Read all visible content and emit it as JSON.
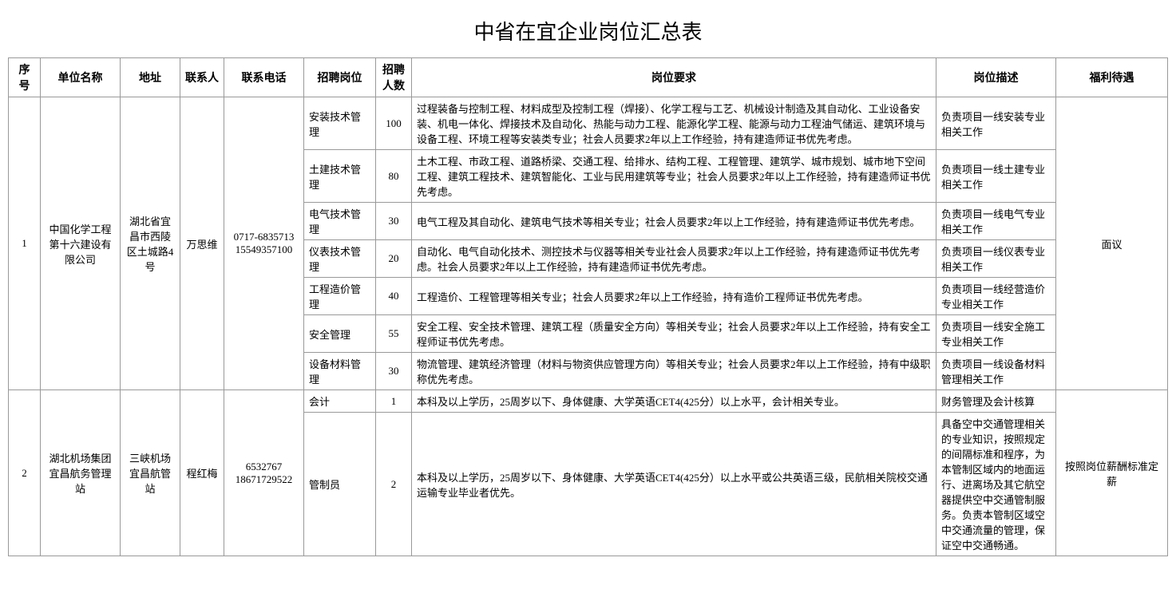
{
  "title": "中省在宜企业岗位汇总表",
  "columns": [
    "序号",
    "单位名称",
    "地址",
    "联系人",
    "联系电话",
    "招聘岗位",
    "招聘人数",
    "岗位要求",
    "岗位描述",
    "福利待遇"
  ],
  "rows": [
    {
      "seq": "1",
      "company": "中国化学工程第十六建设有限公司",
      "address": "湖北省宜昌市西陵区土城路4号",
      "contact": "万思维",
      "phone": "0717-6835713 15549357100",
      "benefit": "面议",
      "positions": [
        {
          "name": "安装技术管理",
          "count": "100",
          "req": "过程装备与控制工程、材料成型及控制工程（焊接）、化学工程与工艺、机械设计制造及其自动化、工业设备安装、机电一体化、焊接技术及自动化、热能与动力工程、能源化学工程、能源与动力工程油气储运、建筑环境与设备工程、环境工程等安装类专业；社会人员要求2年以上工作经验，持有建造师证书优先考虑。",
          "desc": "负责项目一线安装专业相关工作"
        },
        {
          "name": "土建技术管理",
          "count": "80",
          "req": "土木工程、市政工程、道路桥梁、交通工程、给排水、结构工程、工程管理、建筑学、城市规划、城市地下空间工程、建筑工程技术、建筑智能化、工业与民用建筑等专业；社会人员要求2年以上工作经验，持有建造师证书优先考虑。",
          "desc": "负责项目一线土建专业相关工作"
        },
        {
          "name": "电气技术管理",
          "count": "30",
          "req": "电气工程及其自动化、建筑电气技术等相关专业；社会人员要求2年以上工作经验，持有建造师证书优先考虑。",
          "desc": "负责项目一线电气专业相关工作"
        },
        {
          "name": "仪表技术管理",
          "count": "20",
          "req": "自动化、电气自动化技术、测控技术与仪器等相关专业社会人员要求2年以上工作经验，持有建造师证书优先考虑。社会人员要求2年以上工作经验，持有建造师证书优先考虑。",
          "desc": "负责项目一线仪表专业相关工作"
        },
        {
          "name": "工程造价管理",
          "count": "40",
          "req": "工程造价、工程管理等相关专业；社会人员要求2年以上工作经验，持有造价工程师证书优先考虑。",
          "desc": "负责项目一线经营造价专业相关工作"
        },
        {
          "name": "安全管理",
          "count": "55",
          "req": "安全工程、安全技术管理、建筑工程（质量安全方向）等相关专业；社会人员要求2年以上工作经验，持有安全工程师证书优先考虑。",
          "desc": "负责项目一线安全施工专业相关工作"
        },
        {
          "name": "设备材料管理",
          "count": "30",
          "req": "物流管理、建筑经济管理（材料与物资供应管理方向）等相关专业；社会人员要求2年以上工作经验，持有中级职称优先考虑。",
          "desc": "负责项目一线设备材料管理相关工作"
        }
      ]
    },
    {
      "seq": "2",
      "company": "湖北机场集团宜昌航务管理站",
      "address": "三峡机场宜昌航管站",
      "contact": "程红梅",
      "phone": "6532767 18671729522",
      "benefit": "按照岗位薪酬标准定薪",
      "positions": [
        {
          "name": "会计",
          "count": "1",
          "req": "本科及以上学历，25周岁以下、身体健康、大学英语CET4(425分）以上水平，会计相关专业。",
          "desc": "财务管理及会计核算"
        },
        {
          "name": "管制员",
          "count": "2",
          "req": "本科及以上学历，25周岁以下、身体健康、大学英语CET4(425分）以上水平或公共英语三级，民航相关院校交通运输专业毕业者优先。",
          "desc": "具备空中交通管理相关的专业知识，按照规定的间隔标准和程序，为本管制区域内的地面运行、进离场及其它航空器提供空中交通管制服务。负责本管制区域空中交通流量的管理，保证空中交通畅通。"
        }
      ]
    }
  ]
}
